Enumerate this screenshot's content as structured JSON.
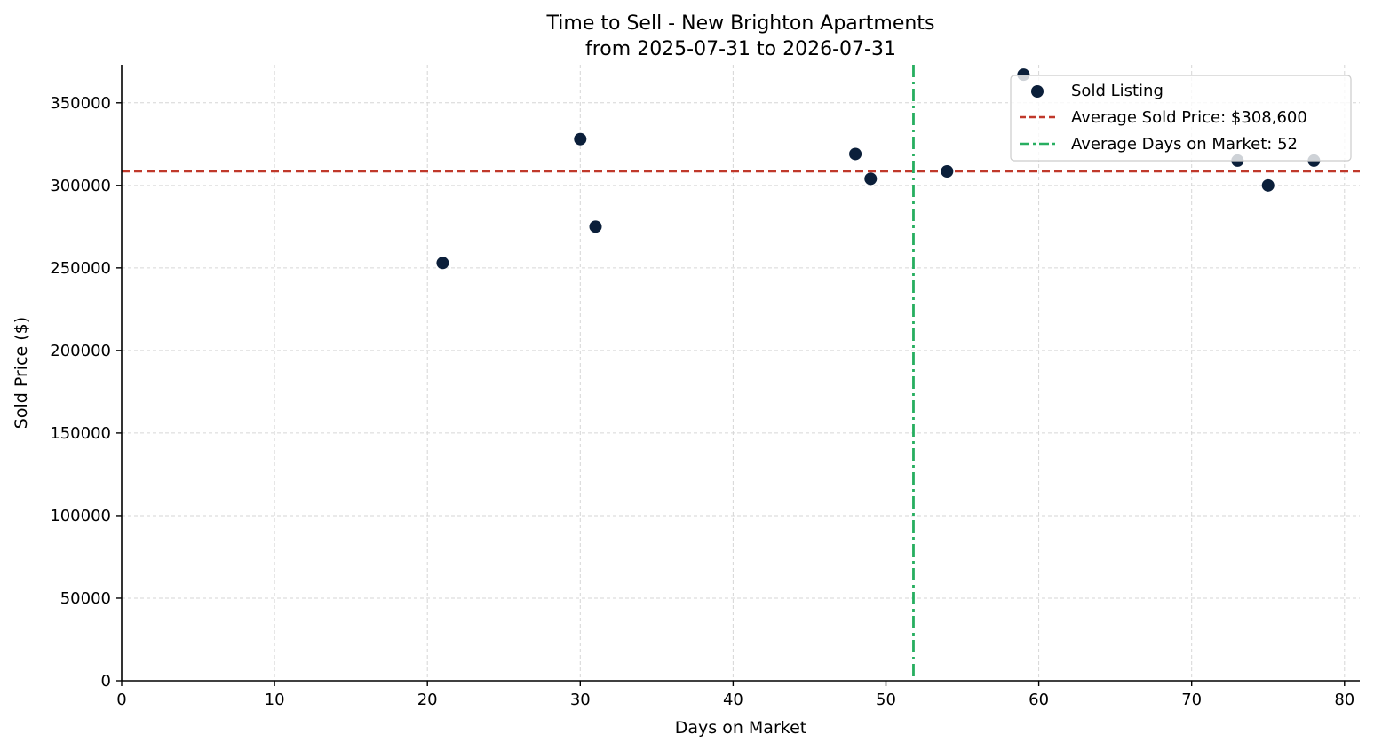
{
  "chart_data": {
    "type": "scatter",
    "title": "Time to Sell - New Brighton Apartments",
    "subtitle": "from 2025-07-31 to 2026-07-31",
    "xlabel": "Days on Market",
    "ylabel": "Sold Price ($)",
    "xlim": [
      0,
      81
    ],
    "ylim": [
      0,
      373000
    ],
    "xticks": [
      0,
      10,
      20,
      30,
      40,
      50,
      60,
      70,
      80
    ],
    "yticks": [
      0,
      50000,
      100000,
      150000,
      200000,
      250000,
      300000,
      350000
    ],
    "grid": true,
    "legend_position": "top-right",
    "series": [
      {
        "name": "Sold Listing",
        "color": "#0b1f3a",
        "points": [
          {
            "x": 21,
            "y": 253000
          },
          {
            "x": 30,
            "y": 328000
          },
          {
            "x": 31,
            "y": 275000
          },
          {
            "x": 48,
            "y": 319000
          },
          {
            "x": 49,
            "y": 304000
          },
          {
            "x": 54,
            "y": 308500
          },
          {
            "x": 59,
            "y": 367000
          },
          {
            "x": 73,
            "y": 315000
          },
          {
            "x": 75,
            "y": 300000
          },
          {
            "x": 78,
            "y": 315000
          }
        ]
      }
    ],
    "reference_lines": [
      {
        "name": "Average Sold Price: $308,600",
        "orientation": "horizontal",
        "value": 308600,
        "color": "#c0392b",
        "style": "dashed"
      },
      {
        "name": "Average Days on Market: 52",
        "orientation": "vertical",
        "value": 51.8,
        "color": "#27ae60",
        "style": "dashdot"
      }
    ]
  }
}
